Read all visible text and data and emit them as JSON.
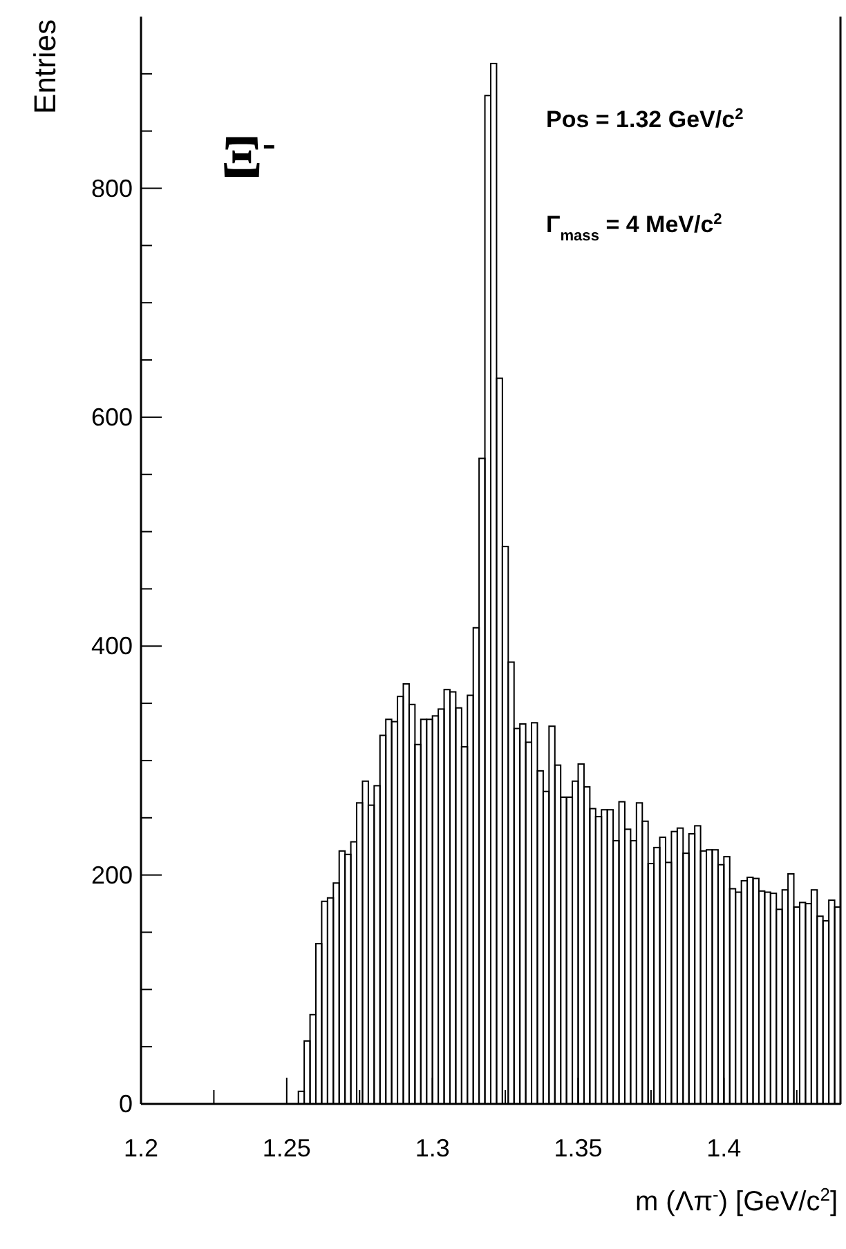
{
  "chart_data": {
    "type": "histogram",
    "xlabel": "m (Λπ$^{-}$) [GeV/c$^{2}$]",
    "ylabel": "Entries",
    "color": "#000000",
    "annotations": [
      "Pos = 1.32 GeV/c$^{2}$",
      "Γ$_{mass}$ = 4 MeV/c$^{2}$",
      "Ξ$^{-}$"
    ],
    "xlim": [
      1.2,
      1.44
    ],
    "ylim": [
      0,
      950
    ],
    "xticks": [
      1.2,
      {
        "value": 1.225,
        "label": null
      },
      1.25,
      {
        "value": 1.275,
        "label": null
      },
      1.3,
      {
        "value": 1.325,
        "label": null
      },
      1.35,
      {
        "value": 1.375,
        "label": null
      },
      1.4,
      {
        "value": 1.425,
        "label": null
      }
    ],
    "yticks": [
      0,
      {
        "value": 50,
        "label": null
      },
      {
        "value": 100,
        "label": null
      },
      {
        "value": 150,
        "label": null
      },
      200,
      {
        "value": 250,
        "label": null
      },
      {
        "value": 300,
        "label": null
      },
      {
        "value": 350,
        "label": null
      },
      400,
      {
        "value": 450,
        "label": null
      },
      {
        "value": 500,
        "label": null
      },
      {
        "value": 550,
        "label": null
      },
      600,
      {
        "value": 650,
        "label": null
      },
      {
        "value": 700,
        "label": null
      },
      {
        "value": 750,
        "label": null
      },
      800,
      {
        "value": 850,
        "label": null
      },
      {
        "value": 900,
        "label": null
      }
    ],
    "bins": [
      1.254,
      1.256,
      1.258,
      1.26,
      1.262,
      1.264,
      1.266,
      1.268,
      1.27,
      1.272,
      1.274,
      1.276,
      1.278,
      1.28,
      1.282,
      1.284,
      1.286,
      1.288,
      1.29,
      1.292,
      1.294,
      1.296,
      1.298,
      1.3,
      1.302,
      1.304,
      1.306,
      1.308,
      1.31,
      1.312,
      1.314,
      1.316,
      1.318,
      1.32,
      1.322,
      1.324,
      1.326,
      1.328,
      1.33,
      1.332,
      1.334,
      1.336,
      1.338,
      1.34,
      1.342,
      1.344,
      1.346,
      1.348,
      1.35,
      1.352,
      1.354,
      1.356,
      1.358,
      1.36,
      1.362,
      1.364,
      1.366,
      1.368,
      1.37,
      1.372,
      1.374,
      1.376,
      1.378,
      1.38,
      1.382,
      1.384,
      1.386,
      1.388,
      1.39,
      1.392,
      1.394,
      1.396,
      1.398,
      1.4,
      1.402,
      1.404,
      1.406,
      1.408,
      1.41,
      1.412,
      1.414,
      1.416,
      1.418,
      1.42,
      1.422,
      1.424,
      1.426,
      1.428,
      1.43,
      1.432,
      1.434,
      1.436,
      1.438,
      1.44
    ],
    "values": [
      11,
      55,
      78,
      140,
      177,
      180,
      193,
      221,
      218,
      229,
      263,
      282,
      261,
      278,
      322,
      336,
      334,
      356,
      367,
      349,
      314,
      336,
      336,
      339,
      345,
      362,
      360,
      346,
      312,
      357,
      416,
      564,
      881,
      909,
      634,
      487,
      386,
      328,
      332,
      316,
      333,
      291,
      273,
      330,
      296,
      268,
      268,
      282,
      297,
      277,
      258,
      251,
      257,
      257,
      230,
      264,
      240,
      230,
      263,
      247,
      210,
      224,
      233,
      211,
      238,
      241,
      219,
      236,
      243,
      221,
      222,
      222,
      209,
      216,
      188,
      185,
      195,
      198,
      197,
      186,
      185,
      184,
      170,
      187,
      201,
      172,
      176,
      175,
      187,
      164,
      160,
      178,
      172
    ]
  }
}
